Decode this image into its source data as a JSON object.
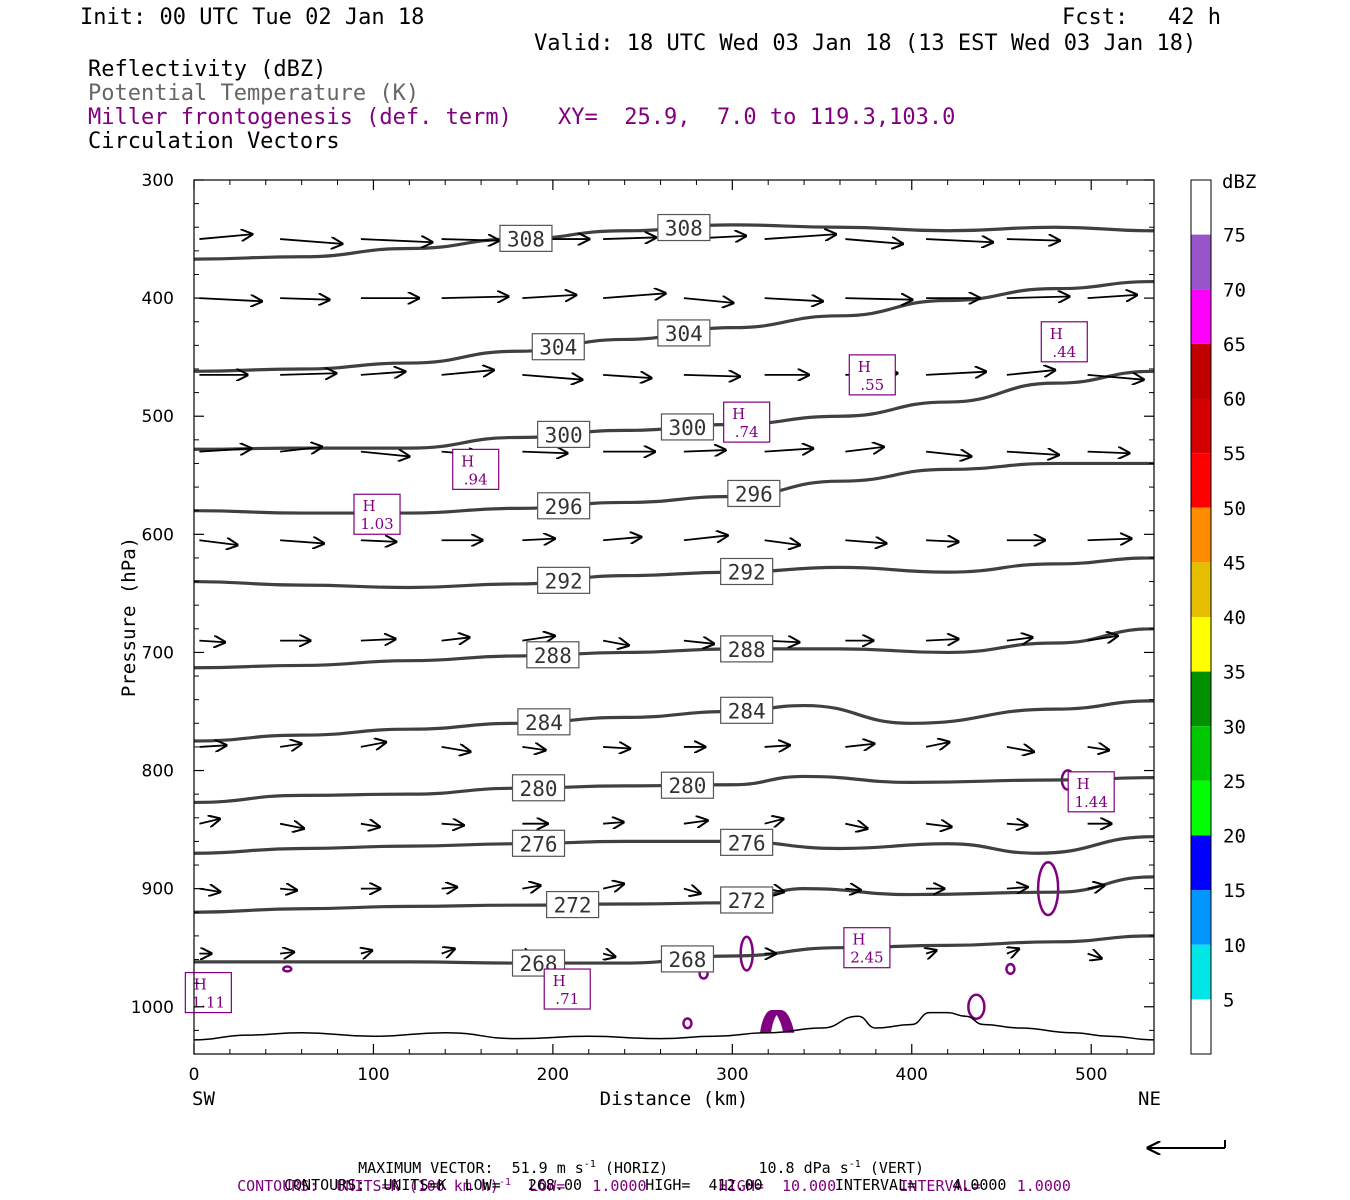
{
  "header": {
    "init": "Init: 00 UTC Tue 02 Jan 18",
    "fcst": "Fcst:   42 h",
    "valid": "Valid: 18 UTC Wed 03 Jan 18 (13 EST Wed 03 Jan 18)",
    "field1": "Reflectivity (dBZ)",
    "field2": "Potential Temperature (K)",
    "field3": "Miller frontogenesis (def. term)",
    "xy": "XY=  25.9,  7.0 to 119.3,103.0",
    "field4": "Circulation Vectors"
  },
  "colors": {
    "theta": "#404040",
    "fronto": "#800080",
    "text_gray": "#666666"
  },
  "chart_data": {
    "type": "cross-section",
    "xlabel": "Distance (km)",
    "ylabel": "Pressure (hPa)",
    "xlim": [
      0,
      535
    ],
    "ylim": [
      1040,
      300
    ],
    "x_ticks": [
      0,
      100,
      200,
      300,
      400,
      500
    ],
    "y_ticks": [
      300,
      400,
      500,
      600,
      700,
      800,
      900,
      1000
    ],
    "x_end_labels": {
      "left": "SW",
      "right": "NE"
    },
    "isentropes_K": [
      {
        "theta": "308",
        "label_x": [
          185,
          273
        ],
        "p": [
          [
            0,
            367
          ],
          [
            60,
            365
          ],
          [
            120,
            358
          ],
          [
            180,
            350
          ],
          [
            240,
            343
          ],
          [
            300,
            338
          ],
          [
            360,
            340
          ],
          [
            420,
            343
          ],
          [
            480,
            340
          ],
          [
            535,
            343
          ]
        ]
      },
      {
        "theta": "304",
        "label_x": [
          203,
          273
        ],
        "p": [
          [
            0,
            462
          ],
          [
            60,
            460
          ],
          [
            120,
            455
          ],
          [
            180,
            445
          ],
          [
            240,
            435
          ],
          [
            300,
            425
          ],
          [
            360,
            415
          ],
          [
            420,
            402
          ],
          [
            480,
            392
          ],
          [
            535,
            386
          ]
        ]
      },
      {
        "theta": "300",
        "label_x": [
          206,
          275
        ],
        "p": [
          [
            0,
            528
          ],
          [
            60,
            527
          ],
          [
            120,
            527
          ],
          [
            180,
            518
          ],
          [
            240,
            512
          ],
          [
            300,
            507
          ],
          [
            360,
            500
          ],
          [
            420,
            488
          ],
          [
            480,
            472
          ],
          [
            535,
            462
          ]
        ]
      },
      {
        "theta": "296",
        "label_x": [
          206,
          312
        ],
        "p": [
          [
            0,
            580
          ],
          [
            60,
            582
          ],
          [
            120,
            582
          ],
          [
            180,
            578
          ],
          [
            240,
            573
          ],
          [
            300,
            568
          ],
          [
            360,
            555
          ],
          [
            420,
            545
          ],
          [
            480,
            540
          ],
          [
            535,
            540
          ]
        ]
      },
      {
        "theta": "292",
        "label_x": [
          206,
          308
        ],
        "p": [
          [
            0,
            640
          ],
          [
            60,
            643
          ],
          [
            120,
            645
          ],
          [
            180,
            642
          ],
          [
            240,
            635
          ],
          [
            300,
            632
          ],
          [
            360,
            628
          ],
          [
            420,
            632
          ],
          [
            480,
            625
          ],
          [
            535,
            620
          ]
        ]
      },
      {
        "theta": "288",
        "label_x": [
          200,
          308
        ],
        "p": [
          [
            0,
            713
          ],
          [
            60,
            711
          ],
          [
            120,
            707
          ],
          [
            180,
            703
          ],
          [
            240,
            700
          ],
          [
            300,
            697
          ],
          [
            360,
            697
          ],
          [
            420,
            700
          ],
          [
            480,
            692
          ],
          [
            535,
            680
          ]
        ]
      },
      {
        "theta": "284",
        "label_x": [
          195,
          308
        ],
        "p": [
          [
            0,
            775
          ],
          [
            60,
            770
          ],
          [
            120,
            765
          ],
          [
            180,
            760
          ],
          [
            240,
            755
          ],
          [
            300,
            750
          ],
          [
            340,
            745
          ],
          [
            400,
            760
          ],
          [
            480,
            748
          ],
          [
            535,
            741
          ]
        ]
      },
      {
        "theta": "280",
        "label_x": [
          192,
          275
        ],
        "p": [
          [
            0,
            827
          ],
          [
            60,
            821
          ],
          [
            120,
            820
          ],
          [
            180,
            815
          ],
          [
            240,
            813
          ],
          [
            300,
            812
          ],
          [
            340,
            805
          ],
          [
            400,
            810
          ],
          [
            480,
            808
          ],
          [
            535,
            806
          ]
        ]
      },
      {
        "theta": "276",
        "label_x": [
          192,
          308
        ],
        "p": [
          [
            0,
            870
          ],
          [
            60,
            866
          ],
          [
            120,
            864
          ],
          [
            180,
            862
          ],
          [
            240,
            860
          ],
          [
            300,
            860
          ],
          [
            360,
            866
          ],
          [
            420,
            862
          ],
          [
            470,
            870
          ],
          [
            535,
            856
          ]
        ]
      },
      {
        "theta": "272",
        "label_x": [
          211,
          308
        ],
        "p": [
          [
            0,
            920
          ],
          [
            60,
            917
          ],
          [
            120,
            915
          ],
          [
            180,
            914
          ],
          [
            240,
            913
          ],
          [
            300,
            912
          ],
          [
            340,
            900
          ],
          [
            400,
            905
          ],
          [
            480,
            903
          ],
          [
            535,
            890
          ]
        ]
      },
      {
        "theta": "268",
        "label_x": [
          192,
          275
        ],
        "p": [
          [
            0,
            962
          ],
          [
            60,
            962
          ],
          [
            120,
            962
          ],
          [
            180,
            963
          ],
          [
            240,
            963
          ],
          [
            300,
            957
          ],
          [
            360,
            950
          ],
          [
            420,
            948
          ],
          [
            480,
            945
          ],
          [
            535,
            940
          ]
        ]
      }
    ],
    "frontogenesis_maxima": [
      {
        "label": "H",
        "value": ".44",
        "x": 485,
        "p": 437
      },
      {
        "label": "H",
        "value": ".55",
        "x": 378,
        "p": 465
      },
      {
        "label": "H",
        "value": ".74",
        "x": 308,
        "p": 505
      },
      {
        "label": "H",
        "value": ".94",
        "x": 157,
        "p": 545
      },
      {
        "label": "H",
        "value": "1.03",
        "x": 102,
        "p": 583
      },
      {
        "label": "H",
        "value": "1.44",
        "x": 500,
        "p": 818
      },
      {
        "label": "H",
        "value": "2.45",
        "x": 375,
        "p": 950
      },
      {
        "label": "H",
        "value": "1.11",
        "x": 8,
        "p": 988
      },
      {
        "label": "H",
        "value": ".71",
        "x": 208,
        "p": 985
      }
    ],
    "wind_vector_levels_hPa": [
      350,
      400,
      465,
      530,
      605,
      690,
      780,
      845,
      900,
      955
    ],
    "colorbar": {
      "unit": "dBZ",
      "labels": [
        "5",
        "10",
        "15",
        "20",
        "25",
        "30",
        "35",
        "40",
        "45",
        "50",
        "55",
        "60",
        "65",
        "70",
        "75"
      ],
      "colors": [
        "#ffffff",
        "#00e5e5",
        "#0096ff",
        "#0000ff",
        "#00ff00",
        "#00c800",
        "#009000",
        "#ffff00",
        "#e6be00",
        "#ff8c00",
        "#ff0000",
        "#d70000",
        "#c00000",
        "#ff00ff",
        "#9955c9",
        "#ffffff"
      ]
    }
  },
  "footer": {
    "line1a": "MAXIMUM VECTOR:  51.9 m s",
    "line1b": " (HORIZ)          10.8 dPa s",
    "line1c": " (VERT)",
    "sup": "-1",
    "line2a": "CONTOURS:  UNITS=K (100 km h)",
    "line2b": "  LOW=   1.0000        HIGH=  10.000       INTERVAL=    1.0000",
    "line3": "CONTOURS:  UNITS=K  LOW=   268.00       HIGH=  412.00        INTERVAL=    4.0000"
  }
}
